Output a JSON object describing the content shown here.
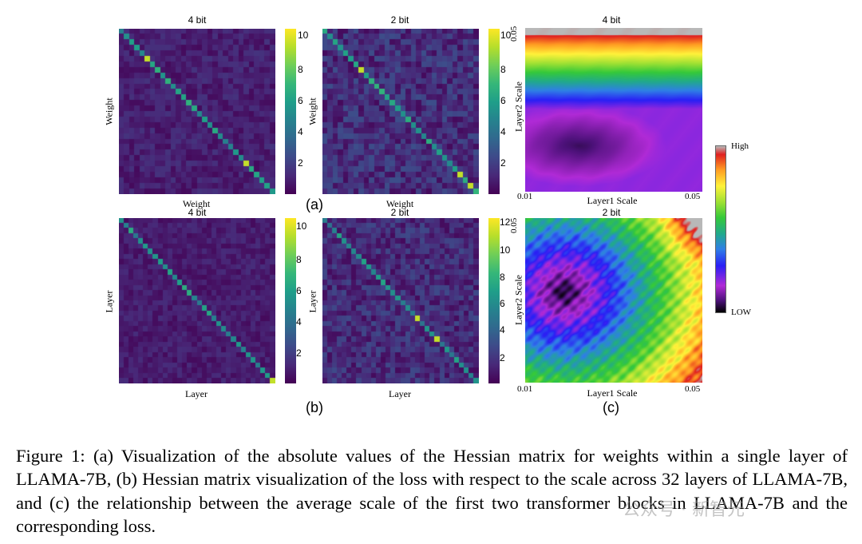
{
  "figure": {
    "panel_a": {
      "label": "(a)",
      "left": {
        "title": "4 bit",
        "xlabel": "Weight",
        "ylabel": "Weight",
        "cbar_ticks": [
          "10",
          "8",
          "6",
          "4",
          "2"
        ],
        "vmax": 10.5
      },
      "right": {
        "title": "2 bit",
        "xlabel": "Weight",
        "ylabel": "Weight",
        "cbar_ticks": [
          "10",
          "8",
          "6",
          "4",
          "2"
        ],
        "vmax": 10.5
      }
    },
    "panel_b": {
      "label": "(b)",
      "left": {
        "title": "4 bit",
        "xlabel": "Layer",
        "ylabel": "Layer",
        "cbar_ticks": [
          "10",
          "8",
          "6",
          "4",
          "2"
        ],
        "vmax": 10.5
      },
      "right": {
        "title": "2 bit",
        "xlabel": "Layer",
        "ylabel": "Layer",
        "cbar_ticks": [
          "12",
          "10",
          "8",
          "6",
          "4",
          "2"
        ],
        "vmax": 12.5
      }
    },
    "panel_c": {
      "label": "(c)",
      "top": {
        "title": "4 bit",
        "xlabel": "Layer1 Scale",
        "ylabel": "Layer2 Scale",
        "x_min": "0.01",
        "x_max": "0.05",
        "y_max": "0.05"
      },
      "bottom": {
        "title": "2 bit",
        "xlabel": "Layer1 Scale",
        "ylabel": "Layer2 Scale",
        "x_min": "0.01",
        "x_max": "0.05",
        "y_max": "0.05"
      },
      "colorbar": {
        "high_label": "High",
        "low_label": "LOW"
      }
    }
  },
  "caption": "Figure 1: (a) Visualization of the absolute values of the Hessian matrix for weights within a single layer of LLAMA-7B, (b) Hessian matrix visualization of the loss with respect to the scale across 32 layers of LLAMA-7B, and (c) the relationship between the average scale of the first two transformer blocks in LLAMA-7B and the corresponding loss.",
  "watermark": "公众号 · 新智元",
  "colors": {
    "viridis_low": "#440154",
    "viridis_high": "#fde725"
  }
}
